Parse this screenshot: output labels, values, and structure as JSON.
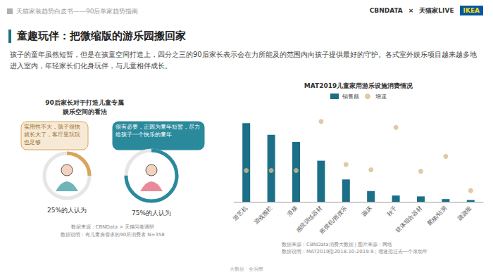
{
  "header": {
    "title": "天猫家装趋势白皮书——90后单家趋势指南",
    "logos": [
      "CBNDATA",
      "×",
      "天猫家LIVE",
      "IKEA"
    ]
  },
  "title": "童趣玩伴：把微缩版的游乐园搬回家",
  "intro": "孩子的童年虽然短暂，但是在孩童空间打造上，四分之三的90后家长表示会在力所能及的范围内向孩子提供最好的守护。各式室外娱乐项目越来越多地进入室内，年轻家长们化身玩伴，与儿童相伴成长。",
  "survey": {
    "title_lines": [
      "90后家长对于打造儿童专属",
      "娱乐空间的看法"
    ],
    "opinions": [
      {
        "text": "实用性不大，孩子很快就长大了，客厅里玩玩也足够",
        "percent": 25,
        "label": "25%的人认为",
        "color": "#d9a55a"
      },
      {
        "text": "很有必要，正因为童年短暂，尽力给孩子一个快乐的童年",
        "percent": 75,
        "label": "75%的人认为",
        "color": "#2a8a9c"
      }
    ],
    "source": "数据来源：CBNData × 天猫问卷调研",
    "note": "数据说明：有儿童房需求的90后消费者 N=358"
  },
  "chart_data": {
    "type": "bar",
    "title": "MAT2019儿童家用游乐设施消费情况",
    "categories": [
      "游艺机",
      "游戏围栏",
      "滑梯",
      "感统训练器材",
      "摇摆机/摇摆乐",
      "蹦床",
      "秋千",
      "软体组合器材",
      "爬梯/钻洞",
      "跷跷板"
    ],
    "series": [
      {
        "name": "销售额",
        "type": "bar",
        "color": "#1b6f87",
        "values": [
          88,
          75,
          67,
          46,
          25,
          12,
          7,
          6,
          3,
          2
        ]
      },
      {
        "name": "增速",
        "type": "scatter",
        "color": "#d8bb8e",
        "axis": "y2",
        "values": [
          42,
          42,
          42,
          108,
          50,
          43,
          100,
          41,
          61,
          15
        ]
      }
    ],
    "ylim": [
      0,
      100
    ],
    "y2lim": [
      0,
      120
    ],
    "tick_labels": false,
    "legend": "top",
    "grid": false,
    "source": "数据来源：CBNData消费大数据 | 图片来源：网络",
    "note": "数据说明：MAT2019指2018.10-2019.9；增速指过去一个滚动年"
  },
  "footer": "大数据 · 全洞察"
}
